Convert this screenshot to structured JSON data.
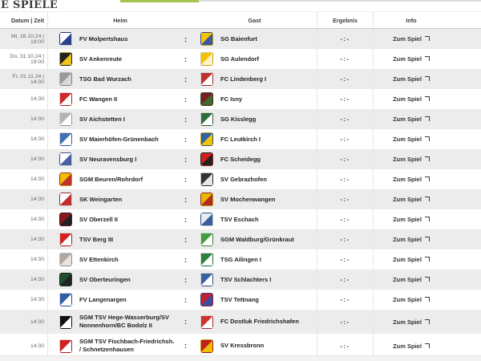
{
  "page": {
    "title": "E SPIELE"
  },
  "colors": {
    "tab_active_green": "#a4c450",
    "tab_line_gray": "#dcdcdc",
    "row_alt_gray": "#ececec"
  },
  "table": {
    "headers": {
      "datetime": "Datum | Zeit",
      "home": "Heim",
      "guest": "Gast",
      "result": "Ergebnis",
      "info": "Info"
    },
    "separator": ":",
    "rows": [
      {
        "datetime": "Mi, 16.10.24 | 19:00",
        "home": "FV Molpertshaus",
        "guest": "SG Baienfurt",
        "result": "-:-",
        "info": "Zum Spiel",
        "home_logo": [
          "#ffffff",
          "#2b3f8f"
        ],
        "guest_logo": [
          "#f5c400",
          "#3a57a5"
        ]
      },
      {
        "datetime": "Do, 31.10.24 | 19:00",
        "home": "SV Ankenreute",
        "guest": "SG Aulendorf",
        "result": "-:-",
        "info": "Zum Spiel",
        "home_logo": [
          "#222222",
          "#f0c419"
        ],
        "guest_logo": [
          "#f5c400",
          "#fff3cc"
        ]
      },
      {
        "datetime": "Fr, 01.11.24 | 14:30",
        "home": "TSG Bad Wurzach",
        "guest": "FC Lindenberg I",
        "result": "-:-",
        "info": "Zum Spiel",
        "home_logo": [
          "#9a9a9a",
          "#d8d8d8"
        ],
        "guest_logo": [
          "#c03030",
          "#ffffff"
        ]
      },
      {
        "datetime": "14:30",
        "home": "FC Wangen II",
        "guest": "FC Isny",
        "result": "-:-",
        "info": "Zum Spiel",
        "home_logo": [
          "#d02828",
          "#ffffff"
        ],
        "guest_logo": [
          "#7a1f1f",
          "#3e6b2f"
        ]
      },
      {
        "datetime": "14:30",
        "home": "SV Aichstetten I",
        "guest": "SG Kisslegg",
        "result": "-:-",
        "info": "Zum Spiel",
        "home_logo": [
          "#b5b5b5",
          "#ffffff"
        ],
        "guest_logo": [
          "#2f6f3a",
          "#ffffff"
        ]
      },
      {
        "datetime": "14:30",
        "home": "SV Maierhöfen-Grünenbach",
        "guest": "FC Leutkirch I",
        "result": "-:-",
        "info": "Zum Spiel",
        "home_logo": [
          "#3f6fb5",
          "#ffffff"
        ],
        "guest_logo": [
          "#2f5fa5",
          "#f5c400"
        ]
      },
      {
        "datetime": "14:30",
        "home": "SV Neuravensburg I",
        "guest": "FC Scheidegg",
        "result": "-:-",
        "info": "Zum Spiel",
        "home_logo": [
          "#ffffff",
          "#4a5fa5"
        ],
        "guest_logo": [
          "#d02020",
          "#222222"
        ]
      },
      {
        "datetime": "14:30",
        "home": "SGM Beuren/Rohrdorf",
        "guest": "SV Gebrazhofen",
        "result": "-:-",
        "info": "Zum Spiel",
        "home_logo": [
          "#f0c000",
          "#c03030"
        ],
        "guest_logo": [
          "#333333",
          "#e8e8e8"
        ]
      },
      {
        "datetime": "14:30",
        "home": "SK Weingarten",
        "guest": "SV Mochenwangen",
        "result": "-:-",
        "info": "Zum Spiel",
        "home_logo": [
          "#ffffff",
          "#c03030"
        ],
        "guest_logo": [
          "#e8b800",
          "#b03020"
        ]
      },
      {
        "datetime": "14:30",
        "home": "SV Oberzell II",
        "guest": "TSV Eschach",
        "result": "-:-",
        "info": "Zum Spiel",
        "home_logo": [
          "#8a1a1a",
          "#222222"
        ],
        "guest_logo": [
          "#e8eef5",
          "#3a5f9f"
        ]
      },
      {
        "datetime": "14:30",
        "home": "TSV Berg III",
        "guest": "SGM Waldburg/Grünkraut",
        "result": "-:-",
        "info": "Zum Spiel",
        "home_logo": [
          "#d82020",
          "#ffffff"
        ],
        "guest_logo": [
          "#3f9f3f",
          "#ffffff"
        ]
      },
      {
        "datetime": "14:30",
        "home": "SV Ettenkirch",
        "guest": "TSG Ailingen I",
        "result": "-:-",
        "info": "Zum Spiel",
        "home_logo": [
          "#b0a8a0",
          "#e8e4e0"
        ],
        "guest_logo": [
          "#2f7f3f",
          "#ffffff"
        ]
      },
      {
        "datetime": "14:30",
        "home": "SV Oberteuringen",
        "guest": "TSV Schlachters I",
        "result": "-:-",
        "info": "Zum Spiel",
        "home_logo": [
          "#1f4f2f",
          "#222222"
        ],
        "guest_logo": [
          "#3a5fa5",
          "#ffffff"
        ]
      },
      {
        "datetime": "14:30",
        "home": "FV Langenargen",
        "guest": "TSV Tettnang",
        "result": "-:-",
        "info": "Zum Spiel",
        "home_logo": [
          "#2f5fa5",
          "#ffffff"
        ],
        "guest_logo": [
          "#c02030",
          "#3a4fa0"
        ]
      },
      {
        "datetime": "14:30",
        "home": "SGM TSV Hege-Wasserburg/SV Nonnenhorn/BC Bodolz II",
        "guest": "FC Dostluk Friedrichshafen",
        "result": "-:-",
        "info": "Zum Spiel",
        "home_logo": [
          "#111111",
          "#ffffff"
        ],
        "guest_logo": [
          "#d03030",
          "#ffffff"
        ]
      },
      {
        "datetime": "14:30",
        "home": "SGM TSV Fischbach-Friedrichsh. / Schnetzenhausen",
        "guest": "SV Kressbronn",
        "result": "-:-",
        "info": "Zum Spiel",
        "home_logo": [
          "#d02020",
          "#ffffff"
        ],
        "guest_logo": [
          "#c02020",
          "#f0c000"
        ]
      }
    ]
  }
}
